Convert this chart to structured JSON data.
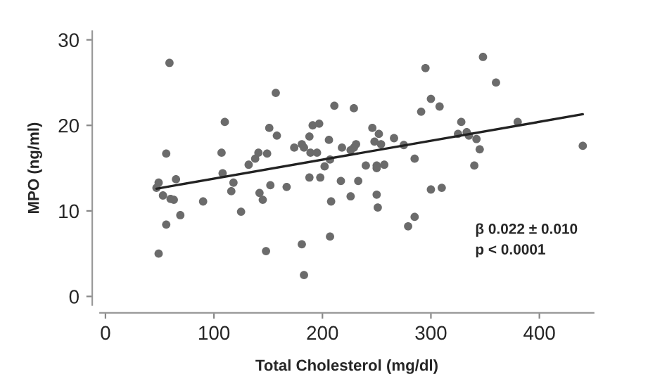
{
  "chart_data": {
    "type": "scatter",
    "xlabel": "Total Cholesterol (mg/dl)",
    "ylabel": "MPO (ng/ml)",
    "xlim": [
      -5,
      450
    ],
    "ylim": [
      -1,
      31
    ],
    "xticks": [
      0,
      100,
      200,
      300,
      400
    ],
    "yticks": [
      0,
      10,
      20,
      30
    ],
    "grid": false,
    "legend": false,
    "marker": "circle",
    "series": [
      {
        "color": "#6b6b6b",
        "x": [
          47,
          49,
          53,
          56,
          56,
          49,
          59,
          60,
          63,
          65,
          69,
          90,
          107,
          108,
          110,
          116,
          118,
          125,
          132,
          138,
          141,
          142,
          145,
          148,
          149,
          151,
          152,
          157,
          158,
          167,
          174,
          181,
          181,
          183,
          183,
          188,
          188,
          189,
          191,
          195,
          197,
          198,
          202,
          206,
          207,
          208,
          207,
          211,
          217,
          218,
          226,
          226,
          229,
          229,
          231,
          233,
          240,
          246,
          248,
          250,
          250,
          250,
          251,
          252,
          254,
          257,
          266,
          275,
          279,
          285,
          285,
          291,
          295,
          300,
          300,
          308,
          310,
          325,
          328,
          333,
          335,
          340,
          342,
          345,
          348,
          360,
          380,
          440
        ],
        "values": [
          12.7,
          13.3,
          11.8,
          16.7,
          8.4,
          5.0,
          27.3,
          11.4,
          11.3,
          13.7,
          9.5,
          11.1,
          16.8,
          14.4,
          20.4,
          12.3,
          13.3,
          9.9,
          15.4,
          16.1,
          16.8,
          12.1,
          11.3,
          5.3,
          16.7,
          19.7,
          13.0,
          23.8,
          18.8,
          12.8,
          17.4,
          17.8,
          6.1,
          17.4,
          2.5,
          18.7,
          13.9,
          16.8,
          20.0,
          16.8,
          20.2,
          13.9,
          15.2,
          18.3,
          16.0,
          11.1,
          7.0,
          22.3,
          13.5,
          17.4,
          11.7,
          17.1,
          22.0,
          17.4,
          17.8,
          13.5,
          15.3,
          19.7,
          18.1,
          15.3,
          15.0,
          11.9,
          10.4,
          19.0,
          17.8,
          15.4,
          18.5,
          17.7,
          8.2,
          9.3,
          16.1,
          21.6,
          26.7,
          23.1,
          12.5,
          22.2,
          12.7,
          19.0,
          20.4,
          19.2,
          18.8,
          15.3,
          18.4,
          17.2,
          28.0,
          25.0,
          20.4,
          17.6
        ]
      },
      {
        "type": "line",
        "color": "#222222",
        "marker": "none",
        "line_style": "solid",
        "x": [
          47,
          440
        ],
        "values": [
          12.6,
          21.3
        ]
      }
    ],
    "annotations": [
      "β 0.022 ± 0.010",
      "p < 0.0001"
    ]
  }
}
